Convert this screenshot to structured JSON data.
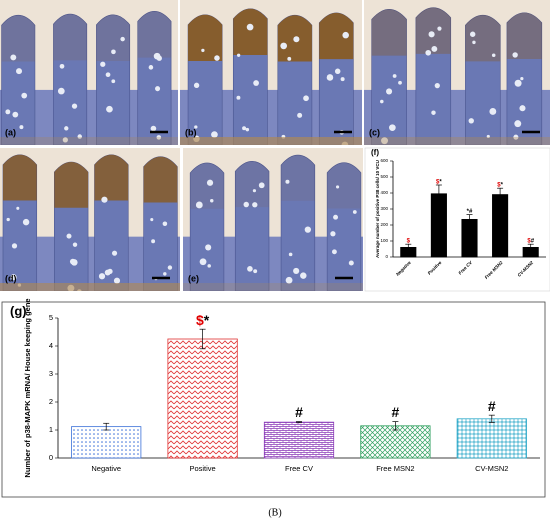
{
  "chart_data": [
    {
      "type": "bar",
      "title": "(f)",
      "y_label": "Average number of positive P38 cells/ 10 VCU",
      "categories": [
        "Negative",
        "Positive",
        "Free CV",
        "Free MSN2",
        "CV-MSN2"
      ],
      "values": [
        60,
        395,
        235,
        390,
        60
      ],
      "errors": [
        20,
        55,
        30,
        40,
        20
      ],
      "annotations": [
        "$",
        "$*",
        "*#",
        "$*",
        "$#"
      ],
      "color": "#000000",
      "annotation_colors": {
        "$": "#e00000"
      },
      "ylim": [
        0,
        600
      ],
      "yticks": [
        0,
        100,
        200,
        300,
        400,
        500,
        600
      ],
      "grid": false
    },
    {
      "type": "bar",
      "title": "(g)",
      "y_label": "Number of p38-MAPK mRNA/ House keeping gene",
      "categories": [
        "Negative",
        "Positive",
        "Free CV",
        "Free MSN2",
        "CV-MSN2"
      ],
      "values": [
        1.12,
        4.25,
        1.28,
        1.15,
        1.4
      ],
      "errors": [
        0.12,
        0.35,
        0.02,
        0.15,
        0.13
      ],
      "annotations": [
        null,
        "$*",
        "#",
        "#",
        "#"
      ],
      "colors": [
        "#3a6fd8",
        "#e03030",
        "#8a3ab8",
        "#30a060",
        "#2aa8c8"
      ],
      "annotation_colors": {
        "$": "#e00000"
      },
      "ylim": [
        0,
        5
      ],
      "yticks": [
        0,
        1,
        2,
        3,
        4,
        5
      ],
      "grid": false
    }
  ],
  "panels": [
    {
      "label": "(a)"
    },
    {
      "label": "(b)"
    },
    {
      "label": "(c)"
    },
    {
      "label": "(d)"
    },
    {
      "label": "(e)"
    }
  ],
  "caption": "(B)"
}
